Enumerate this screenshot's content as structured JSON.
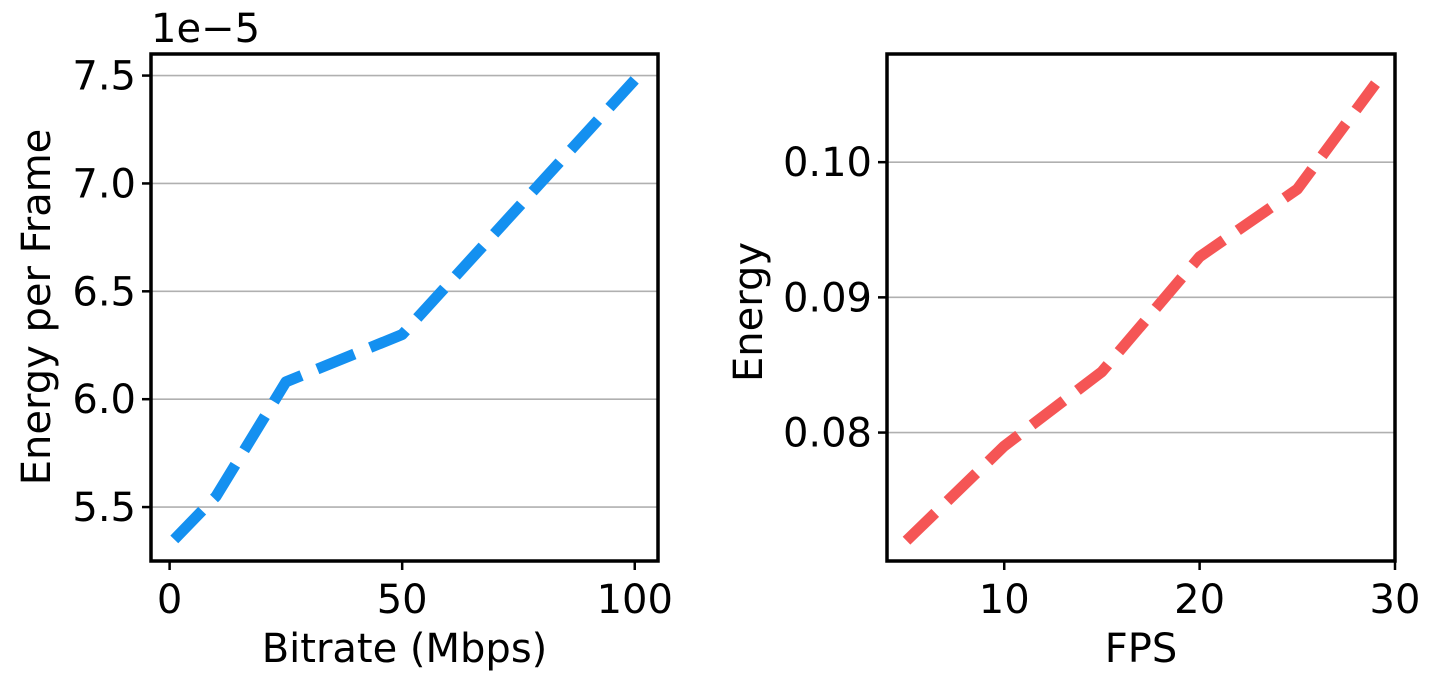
{
  "chart_data": [
    {
      "type": "line",
      "xlabel": "Bitrate (Mbps)",
      "ylabel": "Energy per Frame",
      "y_offset_label": "1e−5",
      "x_ticks": [
        0,
        50,
        100
      ],
      "y_ticks": [
        5.5,
        6.0,
        6.5,
        7.0,
        7.5
      ],
      "y_tick_labels": [
        "5.5",
        "6.0",
        "6.5",
        "7.0",
        "7.5"
      ],
      "xlim": [
        -4,
        105
      ],
      "ylim": [
        5.25,
        7.6
      ],
      "grid": "y",
      "series": [
        {
          "color": "#1490F0",
          "line_style": "dashed",
          "x": [
            1,
            10,
            25,
            50,
            100
          ],
          "y": [
            5.35,
            5.55,
            6.08,
            6.3,
            7.48
          ]
        }
      ]
    },
    {
      "type": "line",
      "xlabel": "FPS",
      "ylabel": "Energy",
      "x_ticks": [
        10,
        20,
        30
      ],
      "y_ticks": [
        0.08,
        0.09,
        0.1
      ],
      "y_tick_labels": [
        "0.08",
        "0.09",
        "0.10"
      ],
      "xlim": [
        4,
        30
      ],
      "ylim": [
        0.0705,
        0.108
      ],
      "grid": "y",
      "series": [
        {
          "color": "#F55555",
          "line_style": "dashed",
          "x": [
            5,
            10,
            15,
            20,
            25,
            29
          ],
          "y": [
            0.072,
            0.079,
            0.0845,
            0.093,
            0.098,
            0.1058
          ]
        }
      ]
    }
  ]
}
